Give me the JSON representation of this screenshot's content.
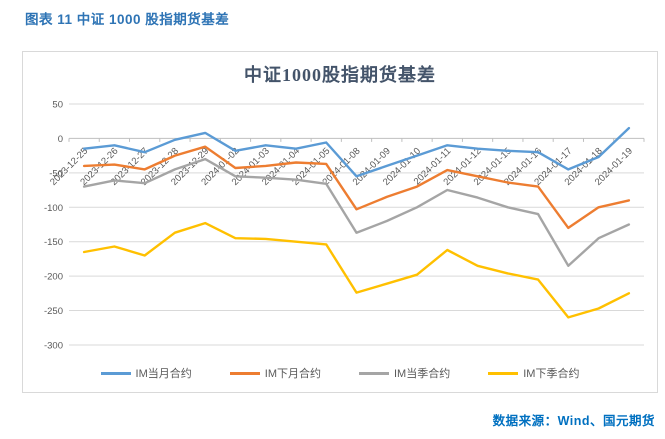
{
  "figure": {
    "caption": "图表 11 中证 1000 股指期货基差"
  },
  "source": {
    "text": "数据来源：Wind、国元期货"
  },
  "colors": {
    "caption_text": "#2E74B5",
    "title_text": "#44546A",
    "source_text": "#0070C0",
    "axis_text": "#595959",
    "gridline": "#D9D9D9",
    "axis_line": "#BFBFBF"
  },
  "chart_data": {
    "type": "line",
    "title": "中证1000股指期货基差",
    "xlabel": "",
    "ylabel": "",
    "ylim": [
      -300,
      50
    ],
    "yticks": [
      50,
      0,
      -50,
      -100,
      -150,
      -200,
      -250,
      -300
    ],
    "grid": true,
    "legend_position": "bottom",
    "categories": [
      "2023-12-25",
      "2023-12-26",
      "2023-12-27",
      "2023-12-28",
      "2023-12-29",
      "2024-01-02",
      "2024-01-03",
      "2024-01-04",
      "2024-01-05",
      "2024-01-08",
      "2024-01-09",
      "2024-01-10",
      "2024-01-11",
      "2024-01-12",
      "2024-01-15",
      "2024-01-16",
      "2024-01-17",
      "2024-01-18",
      "2024-01-19"
    ],
    "series": [
      {
        "name": "IM当月合约",
        "color": "#5B9BD5",
        "values": [
          -15,
          -10,
          -20,
          -2,
          8,
          -18,
          -10,
          -15,
          -6,
          -55,
          -40,
          -25,
          -10,
          -15,
          -18,
          -20,
          -45,
          -27,
          15
        ]
      },
      {
        "name": "IM下月合约",
        "color": "#ED7D31",
        "values": [
          -40,
          -38,
          -45,
          -25,
          -12,
          -43,
          -40,
          -35,
          -37,
          -103,
          -85,
          -70,
          -46,
          -55,
          -64,
          -70,
          -130,
          -100,
          -90
        ]
      },
      {
        "name": "IM当季合约",
        "color": "#A5A5A5",
        "values": [
          -70,
          -61,
          -65,
          -45,
          -30,
          -55,
          -57,
          -60,
          -66,
          -137,
          -120,
          -100,
          -75,
          -86,
          -100,
          -110,
          -185,
          -145,
          -125
        ]
      },
      {
        "name": "IM下季合约",
        "color": "#FFC000",
        "values": [
          -165,
          -157,
          -170,
          -137,
          -123,
          -145,
          -146,
          -150,
          -154,
          -224,
          -211,
          -198,
          -162,
          -185,
          -196,
          -205,
          -260,
          -247,
          -225
        ]
      }
    ]
  }
}
